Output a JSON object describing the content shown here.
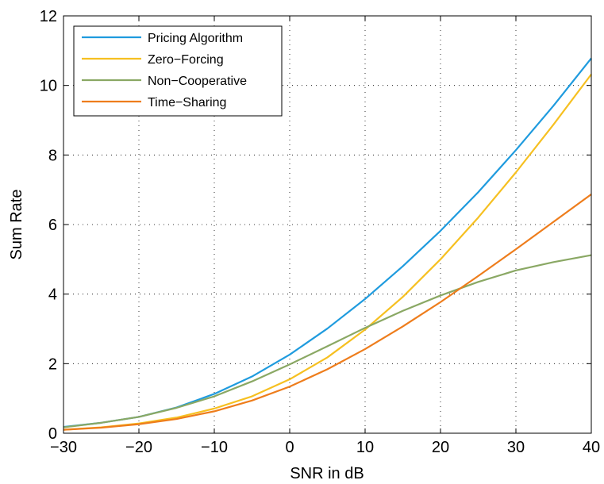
{
  "chart_data": {
    "type": "line",
    "title": "",
    "xlabel": "SNR in dB",
    "ylabel": "Sum Rate",
    "xlim": [
      -30,
      40
    ],
    "ylim": [
      0,
      12
    ],
    "xticks": [
      -30,
      -20,
      -10,
      0,
      10,
      20,
      30,
      40
    ],
    "yticks": [
      0,
      2,
      4,
      6,
      8,
      10,
      12
    ],
    "xtick_labels": [
      "−30",
      "−20",
      "−10",
      "0",
      "10",
      "20",
      "30",
      "40"
    ],
    "ytick_labels": [
      "0",
      "2",
      "4",
      "6",
      "8",
      "10",
      "12"
    ],
    "grid": true,
    "legend_position": "top-left",
    "x": [
      -30,
      -25,
      -20,
      -15,
      -10,
      -5,
      0,
      5,
      10,
      15,
      20,
      25,
      30,
      35,
      40
    ],
    "series": [
      {
        "name": "Pricing Algorithm",
        "color": "#1f9bde",
        "values": [
          0.18,
          0.3,
          0.47,
          0.74,
          1.13,
          1.63,
          2.26,
          3.01,
          3.86,
          4.8,
          5.82,
          6.93,
          8.14,
          9.42,
          10.78
        ]
      },
      {
        "name": "Zero−Forcing",
        "color": "#f6c021",
        "values": [
          0.1,
          0.17,
          0.28,
          0.45,
          0.71,
          1.06,
          1.55,
          2.18,
          2.98,
          3.92,
          5.0,
          6.2,
          7.5,
          8.88,
          10.32
        ]
      },
      {
        "name": "Non−Cooperative",
        "color": "#8aa864",
        "values": [
          0.17,
          0.3,
          0.47,
          0.73,
          1.06,
          1.49,
          1.98,
          2.5,
          3.03,
          3.52,
          3.96,
          4.35,
          4.68,
          4.92,
          5.12
        ]
      },
      {
        "name": "Time−Sharing",
        "color": "#ee7d1c",
        "values": [
          0.1,
          0.16,
          0.26,
          0.41,
          0.63,
          0.94,
          1.34,
          1.84,
          2.42,
          3.07,
          3.77,
          4.52,
          5.29,
          6.08,
          6.87
        ]
      }
    ]
  }
}
